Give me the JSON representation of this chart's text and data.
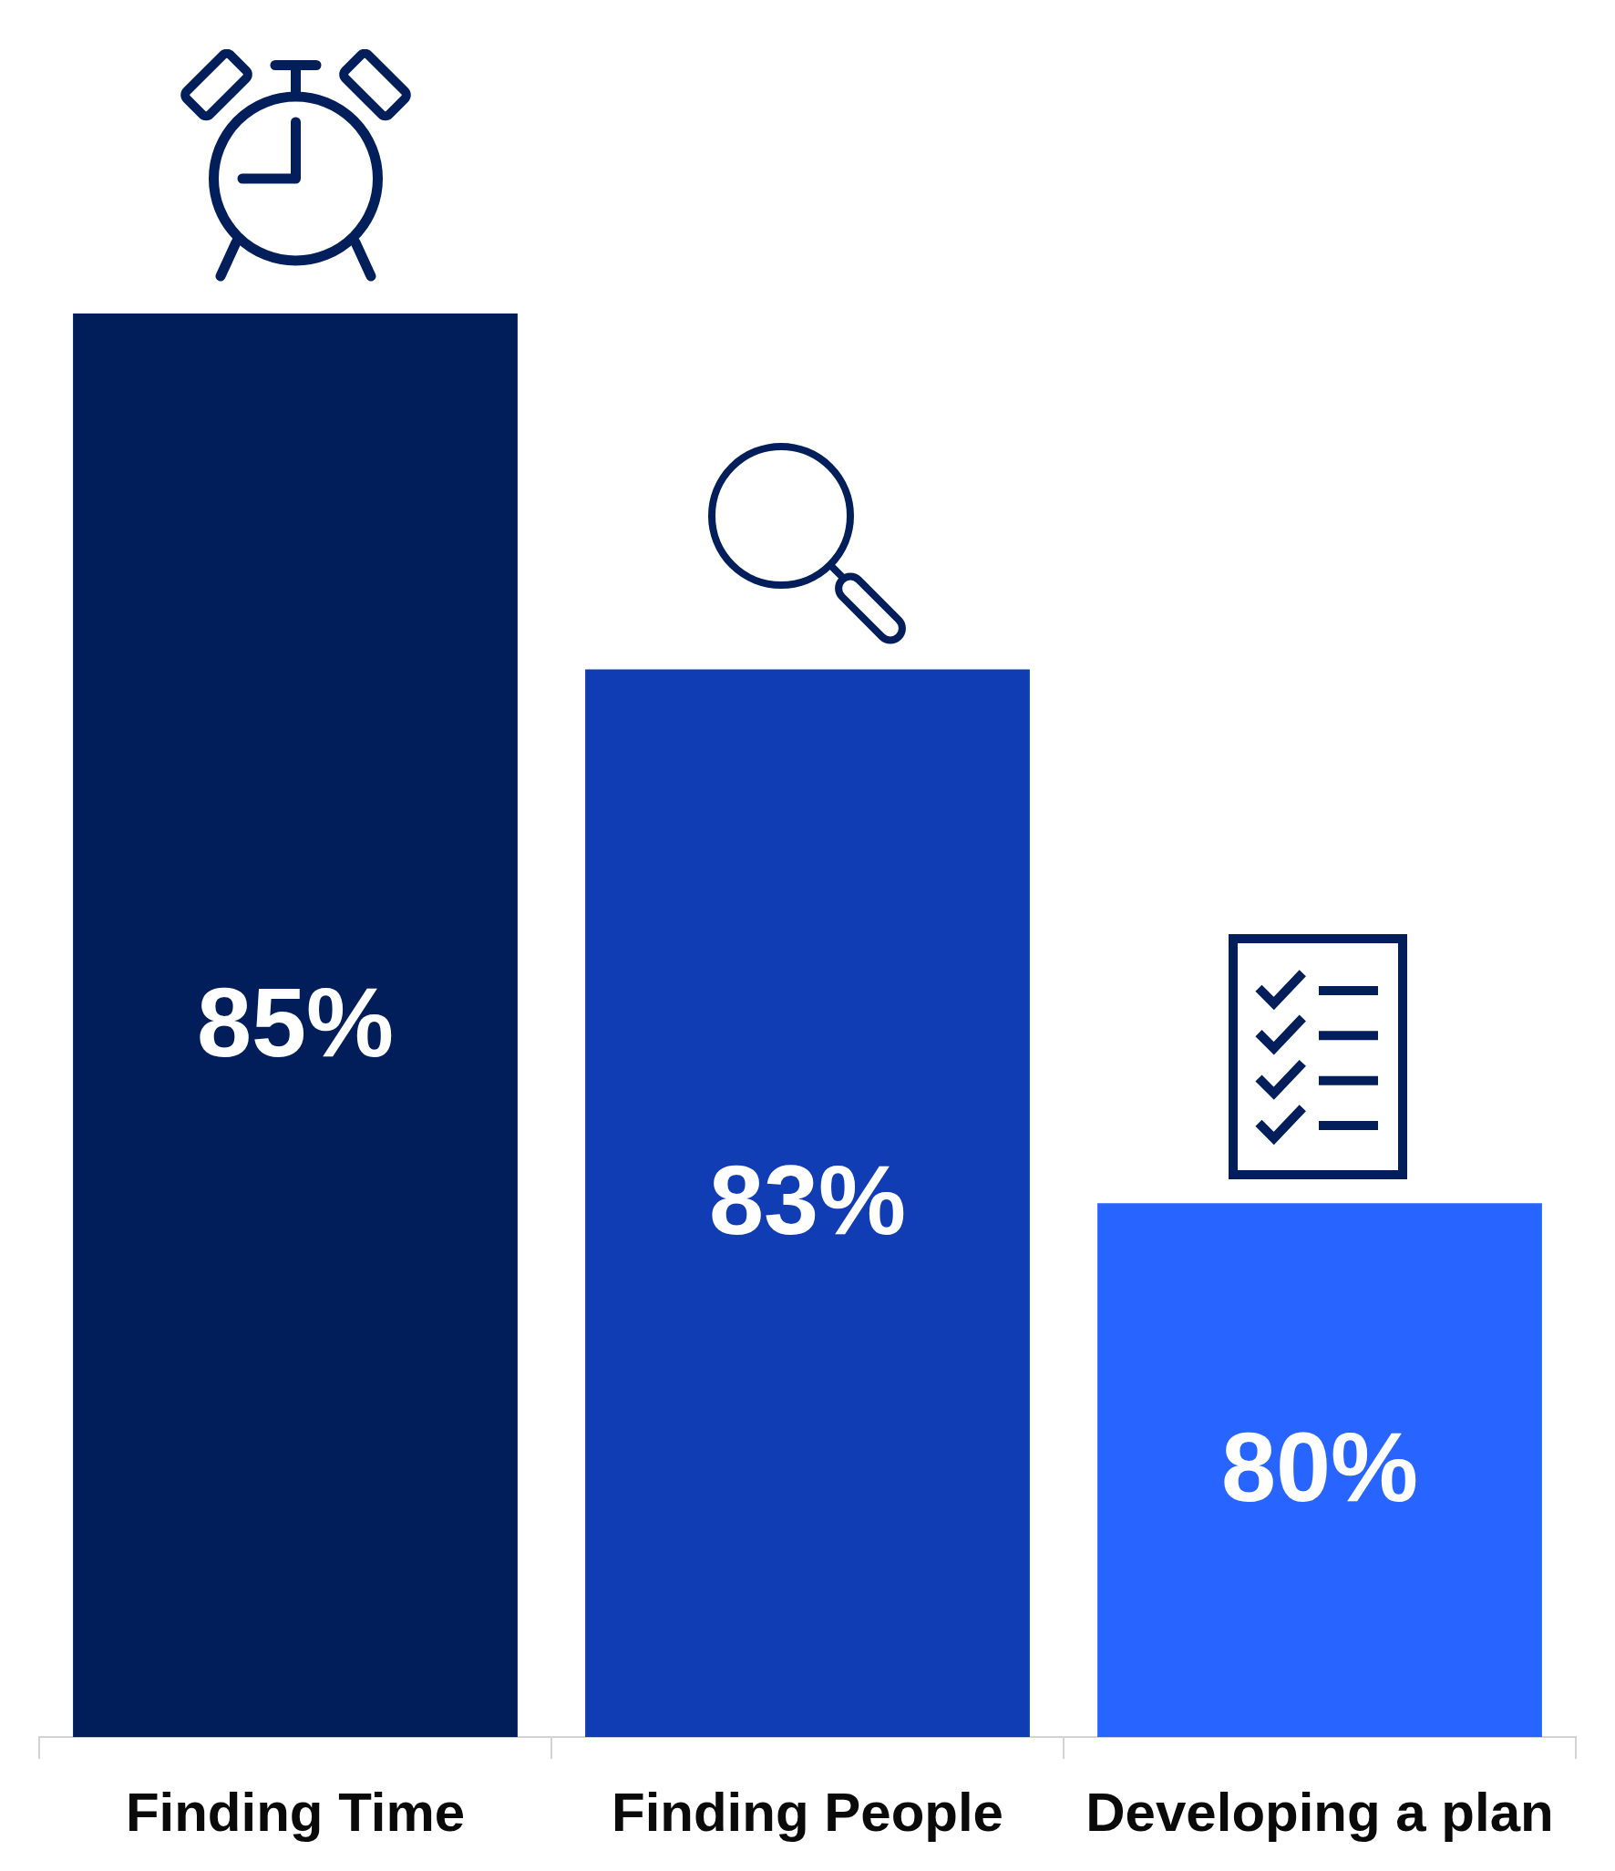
{
  "chart_data": {
    "type": "bar",
    "categories": [
      "Finding Time",
      "Finding People",
      "Developing a plan"
    ],
    "values": [
      85,
      83,
      80
    ],
    "colors": [
      "#011e5a",
      "#113db4",
      "#2864ff"
    ],
    "value_labels": [
      "85%",
      "83%",
      "80%"
    ],
    "ylim": [
      77,
      86.5
    ],
    "tick_labels": "x"
  }
}
